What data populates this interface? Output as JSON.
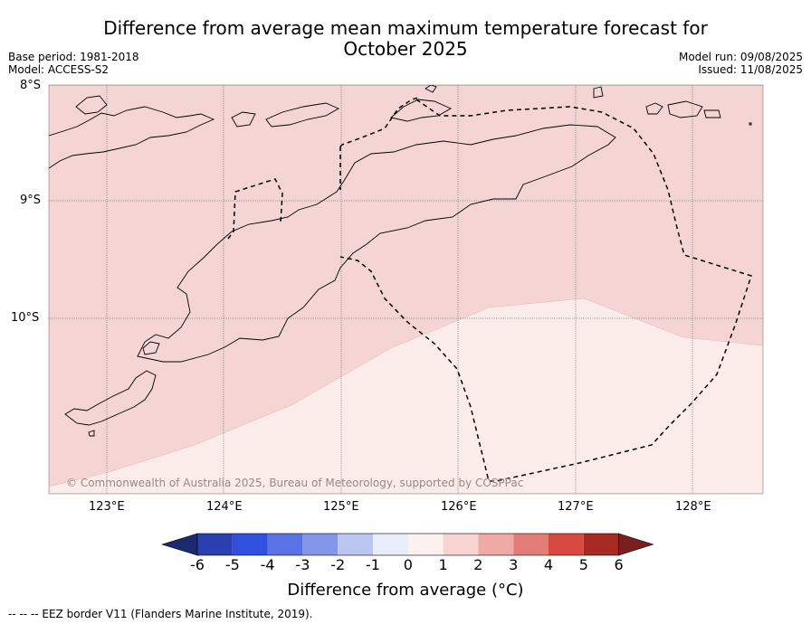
{
  "header": {
    "title_line1": "Difference from average mean maximum temperature forecast for",
    "title_line2": "October 2025",
    "base_period": "Base period: 1981-2018",
    "model": "Model: ACCESS-S2",
    "model_run": "Model run: 09/08/2025",
    "issued": "Issued: 11/08/2025"
  },
  "map": {
    "lat_labels": [
      "8°S",
      "9°S",
      "10°S"
    ],
    "lon_labels": [
      "123°E",
      "124°E",
      "125°E",
      "126°E",
      "127°E",
      "128°E"
    ],
    "watermark": "© Commonwealth of Australia 2025, Bureau of Meteorology, supported by COSPPac",
    "anomaly_regions": [
      {
        "range": "1 to 2",
        "color": "#f5d5d3"
      },
      {
        "range": "0 to 1",
        "color": "#fbebe9"
      }
    ]
  },
  "colorbar": {
    "title": "Difference from average (°C)",
    "tick_labels": [
      "-6",
      "-5",
      "-4",
      "-3",
      "-2",
      "-1",
      "0",
      "1",
      "2",
      "3",
      "4",
      "5",
      "6"
    ],
    "under_color": "#1a2a6c",
    "over_color": "#7a1f1f",
    "colors": [
      "#2a3fb0",
      "#3050e0",
      "#5a72e6",
      "#8296ea",
      "#bcc6f2",
      "#e8ecfb",
      "#fdf1f0",
      "#f7d4d2",
      "#efaaa6",
      "#e47d77",
      "#d84a40",
      "#a82a22"
    ]
  },
  "footer": {
    "eez_note": "--  --  -- EEZ border V11 (Flanders Marine Institute, 2019)."
  }
}
